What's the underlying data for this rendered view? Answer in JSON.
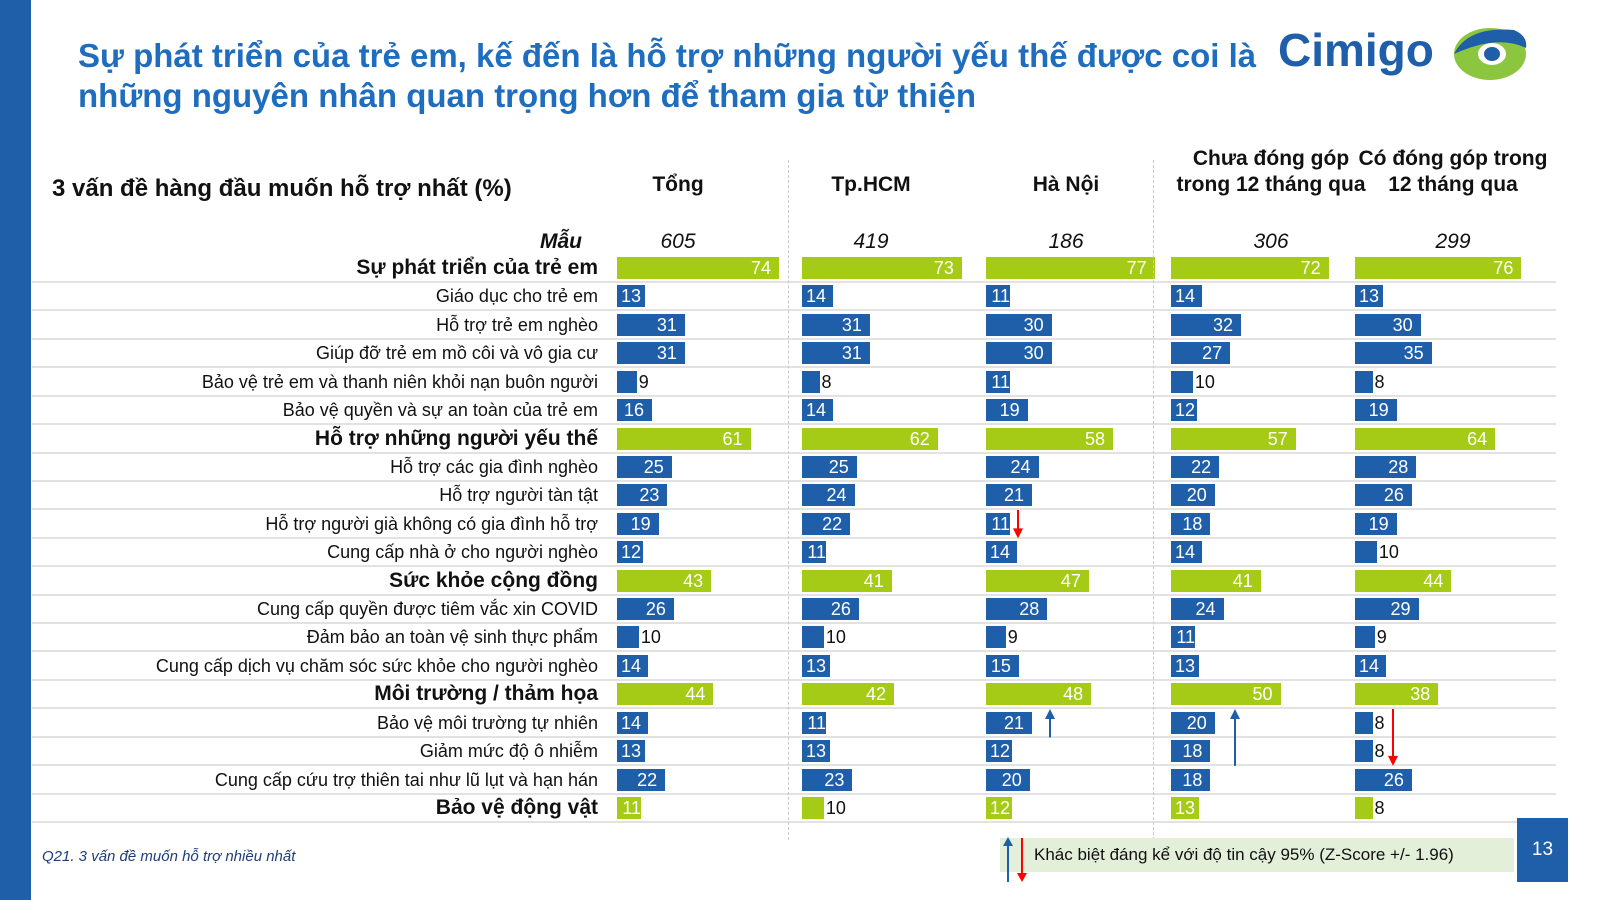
{
  "title": "Sự phát triển của trẻ em, kế đến là hỗ trợ những người yếu thế được coi là những nguyên nhân quan trọng hơn để tham gia từ thiện",
  "logo_text": "Cimigo",
  "colors": {
    "category": "#a6cb16",
    "item": "#1f5ea8",
    "up_arrow": "#1f5ea8",
    "down_arrow": "#ff0000",
    "accent": "#1f6dbf"
  },
  "chart_data": {
    "type": "bar",
    "orientation": "horizontal",
    "title": "3 vấn đề hàng đầu muốn hỗ trợ nhất (%)",
    "sample_label": "Mẫu",
    "columns": [
      {
        "name": "Tổng",
        "sample": "605"
      },
      {
        "name": "Tp.HCM",
        "sample": "419"
      },
      {
        "name": "Hà Nội",
        "sample": "186"
      },
      {
        "name": "Chưa đóng góp trong 12 tháng qua",
        "sample": "306"
      },
      {
        "name": "Có đóng góp trong 12 tháng qua",
        "sample": "299"
      }
    ],
    "rows": [
      {
        "label": "Sự phát triển của trẻ em",
        "category": true,
        "values": [
          74,
          73,
          77,
          72,
          76
        ]
      },
      {
        "label": "Giáo dục cho trẻ em",
        "category": false,
        "values": [
          13,
          14,
          11,
          14,
          13
        ]
      },
      {
        "label": "Hỗ trợ trẻ em nghèo",
        "category": false,
        "values": [
          31,
          31,
          30,
          32,
          30
        ]
      },
      {
        "label": "Giúp đỡ trẻ em mồ côi và vô gia cư",
        "category": false,
        "values": [
          31,
          31,
          30,
          27,
          35
        ]
      },
      {
        "label": "Bảo vệ trẻ em và thanh niên khỏi nạn buôn người",
        "category": false,
        "values": [
          9,
          8,
          11,
          10,
          8
        ]
      },
      {
        "label": "Bảo vệ quyền và sự an toàn của trẻ em",
        "category": false,
        "values": [
          16,
          14,
          19,
          12,
          19
        ]
      },
      {
        "label": "Hỗ trợ những người yếu thế",
        "category": true,
        "values": [
          61,
          62,
          58,
          57,
          64
        ]
      },
      {
        "label": "Hỗ trợ các gia đình nghèo",
        "category": false,
        "values": [
          25,
          25,
          24,
          22,
          28
        ]
      },
      {
        "label": "Hỗ trợ người tàn tật",
        "category": false,
        "values": [
          23,
          24,
          21,
          20,
          26
        ]
      },
      {
        "label": "Hỗ trợ người già không có gia đình hỗ trợ",
        "category": false,
        "values": [
          19,
          22,
          11,
          18,
          19
        ]
      },
      {
        "label": "Cung cấp nhà ở cho người nghèo",
        "category": false,
        "values": [
          12,
          11,
          14,
          14,
          10
        ]
      },
      {
        "label": "Sức khỏe cộng đồng",
        "category": true,
        "values": [
          43,
          41,
          47,
          41,
          44
        ]
      },
      {
        "label": "Cung cấp quyền được tiêm vắc xin COVID",
        "category": false,
        "values": [
          26,
          26,
          28,
          24,
          29
        ]
      },
      {
        "label": "Đảm bảo an toàn vệ sinh thực phẩm",
        "category": false,
        "values": [
          10,
          10,
          9,
          11,
          9
        ]
      },
      {
        "label": "Cung cấp dịch vụ chăm sóc sức khỏe cho người nghèo",
        "category": false,
        "values": [
          14,
          13,
          15,
          13,
          14
        ]
      },
      {
        "label": "Môi trường / thảm họa",
        "category": true,
        "values": [
          44,
          42,
          48,
          50,
          38
        ]
      },
      {
        "label": "Bảo vệ môi trường tự nhiên",
        "category": false,
        "values": [
          14,
          11,
          21,
          20,
          8
        ]
      },
      {
        "label": "Giảm mức độ ô nhiễm",
        "category": false,
        "values": [
          13,
          13,
          12,
          18,
          8
        ]
      },
      {
        "label": "Cung cấp cứu trợ thiên tai như lũ lụt và hạn hán",
        "category": false,
        "values": [
          22,
          23,
          20,
          18,
          26
        ]
      },
      {
        "label": "Bảo vệ động vật",
        "category": true,
        "values": [
          11,
          10,
          12,
          13,
          8
        ]
      }
    ],
    "significance": [
      {
        "column": 2,
        "row": 9,
        "direction": "down"
      },
      {
        "column": 2,
        "row": 16,
        "direction": "up"
      },
      {
        "column": 3,
        "row": 16,
        "direction": "up",
        "span_rows": 2
      },
      {
        "column": 4,
        "row": 16,
        "direction": "down",
        "span_rows": 2
      }
    ]
  },
  "legend_text": "Khác biệt đáng kể với độ tin cậy 95%  (Z-Score +/- 1.96)",
  "footnote": "Q21. 3 vấn đề muốn hỗ trợ nhiều nhất",
  "page_number": "13"
}
